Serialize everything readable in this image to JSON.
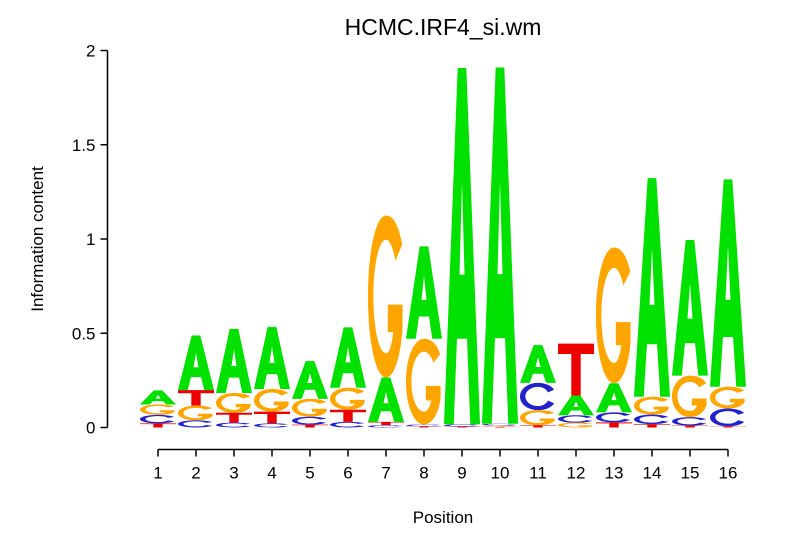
{
  "chart_data": {
    "type": "bar",
    "variant": "sequence-logo",
    "title": "HCMC.IRF4_si.wm",
    "xlabel": "Position",
    "ylabel": "Information content",
    "ylim": [
      0,
      2
    ],
    "yticks": [
      "0",
      "0.5",
      "1",
      "1.5",
      "2"
    ],
    "ytick_values": [
      0,
      0.5,
      1,
      1.5,
      2
    ],
    "xtick_labels": [
      "1",
      "2",
      "3",
      "4",
      "5",
      "6",
      "7",
      "8",
      "9",
      "10",
      "11",
      "12",
      "13",
      "14",
      "15",
      "16"
    ],
    "grid": false,
    "legend": "none",
    "letter_colors": {
      "A": "#00E100",
      "C": "#2222CC",
      "G": "#FFA500",
      "T": "#EE0000"
    },
    "axis_color": "#000000",
    "stacks": [
      {
        "position": 1,
        "letters": [
          [
            "A",
            0.075
          ],
          [
            "G",
            0.055
          ],
          [
            "C",
            0.045
          ],
          [
            "T",
            0.022
          ]
        ]
      },
      {
        "position": 2,
        "letters": [
          [
            "A",
            0.29
          ],
          [
            "T",
            0.082
          ],
          [
            "G",
            0.078
          ],
          [
            "C",
            0.038
          ]
        ]
      },
      {
        "position": 3,
        "letters": [
          [
            "A",
            0.34
          ],
          [
            "G",
            0.105
          ],
          [
            "T",
            0.052
          ],
          [
            "C",
            0.026
          ]
        ]
      },
      {
        "position": 4,
        "letters": [
          [
            "A",
            0.33
          ],
          [
            "G",
            0.12
          ],
          [
            "T",
            0.062
          ],
          [
            "C",
            0.022
          ]
        ]
      },
      {
        "position": 5,
        "letters": [
          [
            "A",
            0.2
          ],
          [
            "G",
            0.095
          ],
          [
            "C",
            0.042
          ],
          [
            "T",
            0.015
          ]
        ]
      },
      {
        "position": 6,
        "letters": [
          [
            "A",
            0.32
          ],
          [
            "G",
            0.117
          ],
          [
            "T",
            0.064
          ],
          [
            "C",
            0.03
          ]
        ]
      },
      {
        "position": 7,
        "letters": [
          [
            "G",
            0.86
          ],
          [
            "A",
            0.235
          ],
          [
            "T",
            0.018
          ],
          [
            "C",
            0.012
          ]
        ]
      },
      {
        "position": 8,
        "letters": [
          [
            "A",
            0.49
          ],
          [
            "G",
            0.455
          ],
          [
            "C",
            0.01
          ],
          [
            "T",
            0.006
          ]
        ]
      },
      {
        "position": 9,
        "letters": [
          [
            "A",
            1.89
          ],
          [
            "C",
            0.012
          ],
          [
            "T",
            0.005
          ]
        ]
      },
      {
        "position": 10,
        "letters": [
          [
            "A",
            1.89
          ],
          [
            "C",
            0.01
          ],
          [
            "G",
            0.006
          ],
          [
            "T",
            0.004
          ]
        ]
      },
      {
        "position": 11,
        "letters": [
          [
            "A",
            0.2
          ],
          [
            "C",
            0.145
          ],
          [
            "G",
            0.08
          ],
          [
            "T",
            0.012
          ]
        ]
      },
      {
        "position": 12,
        "letters": [
          [
            "T",
            0.275
          ],
          [
            "A",
            0.105
          ],
          [
            "C",
            0.04
          ],
          [
            "G",
            0.025
          ]
        ]
      },
      {
        "position": 13,
        "letters": [
          [
            "G",
            0.72
          ],
          [
            "A",
            0.155
          ],
          [
            "C",
            0.053
          ],
          [
            "T",
            0.027
          ]
        ]
      },
      {
        "position": 14,
        "letters": [
          [
            "A",
            1.16
          ],
          [
            "G",
            0.095
          ],
          [
            "C",
            0.05
          ],
          [
            "T",
            0.018
          ]
        ]
      },
      {
        "position": 15,
        "letters": [
          [
            "A",
            0.72
          ],
          [
            "G",
            0.22
          ],
          [
            "C",
            0.045
          ],
          [
            "T",
            0.01
          ]
        ]
      },
      {
        "position": 16,
        "letters": [
          [
            "A",
            1.1
          ],
          [
            "G",
            0.115
          ],
          [
            "C",
            0.095
          ],
          [
            "T",
            0.006
          ]
        ]
      }
    ]
  }
}
